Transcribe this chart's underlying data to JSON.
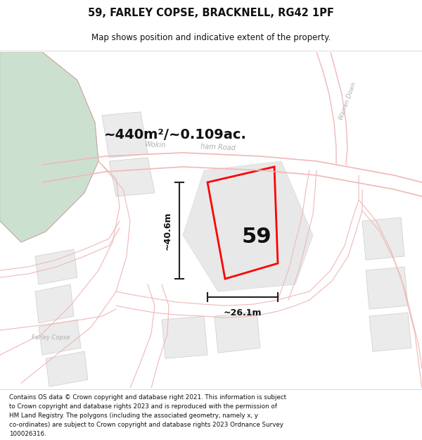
{
  "title_line1": "59, FARLEY COPSE, BRACKNELL, RG42 1PF",
  "title_line2": "Map shows position and indicative extent of the property.",
  "area_label": "~440m²/~0.109ac.",
  "label_number": "59",
  "dim_vertical": "~40.6m",
  "dim_horizontal": "~26.1m",
  "footer_lines": [
    "Contains OS data © Crown copyright and database right 2021. This information is subject",
    "to Crown copyright and database rights 2023 and is reproduced with the permission of",
    "HM Land Registry. The polygons (including the associated geometry, namely x, y",
    "co-ordinates) are subject to Crown copyright and database rights 2023 Ordnance Survey",
    "100026316."
  ],
  "map_bg": "#ffffff",
  "road_color": "#f0b8b8",
  "road_lw": 0.8,
  "boundary_color": "#d0a0a0",
  "building_fill": "#ebebeb",
  "building_edge": "#cccccc",
  "green_fill": "#cce0d0",
  "green_edge": "#b0ccb8",
  "plot_color": "#ff0000",
  "plot_lw": 2.0,
  "dim_color": "#222222",
  "road_label_color": "#b0b0b0",
  "title_fontsize": 10.5,
  "subtitle_fontsize": 8.5,
  "area_fontsize": 14,
  "number_fontsize": 22,
  "dim_fontsize": 9,
  "road_label_fontsize": 7
}
